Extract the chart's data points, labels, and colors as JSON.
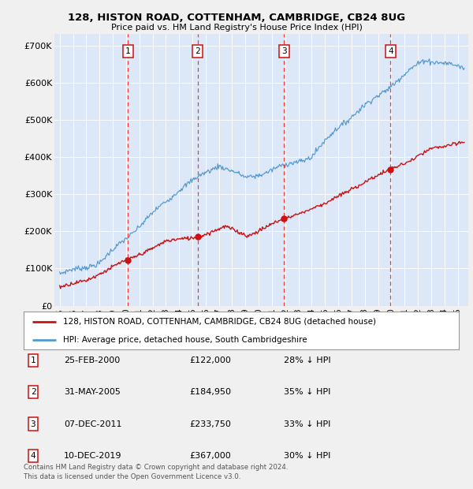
{
  "title1": "128, HISTON ROAD, COTTENHAM, CAMBRIDGE, CB24 8UG",
  "title2": "Price paid vs. HM Land Registry's House Price Index (HPI)",
  "yticks": [
    0,
    100000,
    200000,
    300000,
    400000,
    500000,
    600000,
    700000
  ],
  "ytick_labels": [
    "£0",
    "£100K",
    "£200K",
    "£300K",
    "£400K",
    "£500K",
    "£600K",
    "£700K"
  ],
  "ylim": [
    0,
    730000
  ],
  "xlim": [
    1994.6,
    2025.8
  ],
  "sale_dates": [
    2000.146,
    2005.412,
    2011.923,
    2019.942
  ],
  "sale_prices": [
    122000,
    184950,
    233750,
    367000
  ],
  "sale_labels": [
    "1",
    "2",
    "3",
    "4"
  ],
  "legend_red": "128, HISTON ROAD, COTTENHAM, CAMBRIDGE, CB24 8UG (detached house)",
  "legend_blue": "HPI: Average price, detached house, South Cambridgeshire",
  "footnote": "Contains HM Land Registry data © Crown copyright and database right 2024.\nThis data is licensed under the Open Government Licence v3.0.",
  "table_rows": [
    [
      "1",
      "25-FEB-2000",
      "£122,000",
      "28% ↓ HPI"
    ],
    [
      "2",
      "31-MAY-2005",
      "£184,950",
      "35% ↓ HPI"
    ],
    [
      "3",
      "07-DEC-2011",
      "£233,750",
      "33% ↓ HPI"
    ],
    [
      "4",
      "10-DEC-2019",
      "£367,000",
      "30% ↓ HPI"
    ]
  ],
  "fig_bg": "#f0f0f0",
  "plot_bg": "#dce8f8",
  "grid_color": "#ffffff",
  "red_color": "#cc1111",
  "blue_color": "#5599cc"
}
